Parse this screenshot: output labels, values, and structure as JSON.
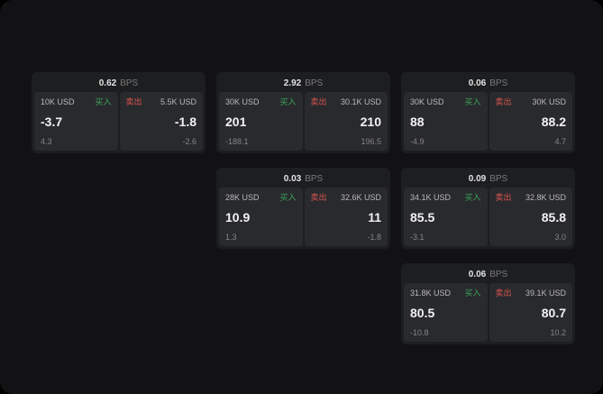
{
  "labels": {
    "buy": "买入",
    "sell": "卖出",
    "bps": "BPS"
  },
  "colors": {
    "buy_green": "#3ba55d",
    "sell_red": "#d9544f",
    "background": "#121214",
    "card": "#1d1e20",
    "panel": "#292a2d"
  },
  "cards": [
    {
      "row": 1,
      "col": 1,
      "spread": "0.62",
      "buy": {
        "amount": "10K USD",
        "price": "-3.7",
        "sub": "4.3"
      },
      "sell": {
        "amount": "5.5K USD",
        "price": "-1.8",
        "sub": "-2.6"
      }
    },
    {
      "row": 1,
      "col": 2,
      "spread": "2.92",
      "buy": {
        "amount": "30K USD",
        "price": "201",
        "sub": "-188.1"
      },
      "sell": {
        "amount": "30.1K USD",
        "price": "210",
        "sub": "196.5"
      }
    },
    {
      "row": 1,
      "col": 3,
      "spread": "0.06",
      "buy": {
        "amount": "30K USD",
        "price": "88",
        "sub": "-4.9"
      },
      "sell": {
        "amount": "30K USD",
        "price": "88.2",
        "sub": "4.7"
      }
    },
    {
      "row": 2,
      "col": 2,
      "spread": "0.03",
      "buy": {
        "amount": "28K USD",
        "price": "10.9",
        "sub": "1.3"
      },
      "sell": {
        "amount": "32.6K USD",
        "price": "11",
        "sub": "-1.8"
      }
    },
    {
      "row": 2,
      "col": 3,
      "spread": "0.09",
      "buy": {
        "amount": "34.1K USD",
        "price": "85.5",
        "sub": "-3.1"
      },
      "sell": {
        "amount": "32.8K USD",
        "price": "85.8",
        "sub": "3.0"
      }
    },
    {
      "row": 3,
      "col": 3,
      "spread": "0.06",
      "buy": {
        "amount": "31.8K USD",
        "price": "80.5",
        "sub": "-10.8"
      },
      "sell": {
        "amount": "39.1K USD",
        "price": "80.7",
        "sub": "10.2"
      }
    }
  ]
}
